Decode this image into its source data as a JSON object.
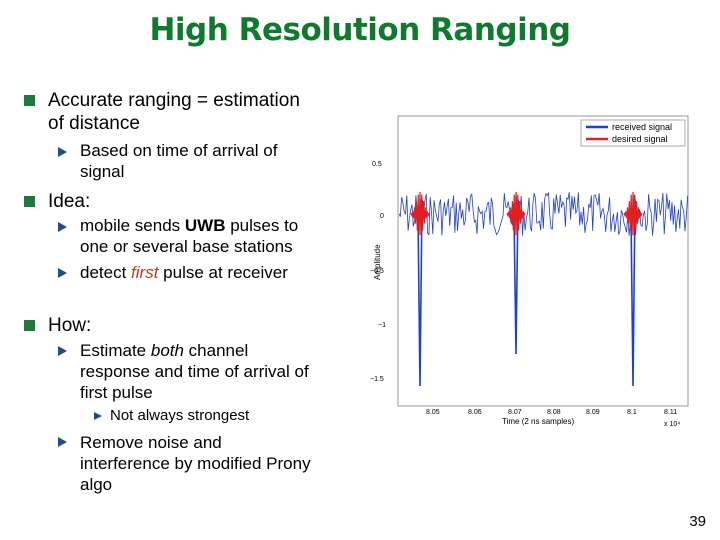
{
  "slide": {
    "title": "High Resolution Ranging",
    "page_number": "39"
  },
  "bullets": {
    "b1": {
      "line1": "Accurate ranging = estimation",
      "line2": "of distance",
      "sub1": {
        "line1": "Based on time of arrival of",
        "line2": "signal"
      }
    },
    "b2": {
      "text": "Idea:",
      "sub1": {
        "part1": "mobile sends ",
        "bold": "UWB",
        "part2": " pulses to",
        "line2": "one or several base stations"
      },
      "sub2": {
        "part1": "detect ",
        "emph": "first",
        "part2": " pulse at receiver"
      }
    },
    "b3": {
      "text": "How:",
      "sub1": {
        "part1": "Estimate ",
        "emph": "both",
        "part2": " channel",
        "line2": "response and time of arrival of",
        "line3": "first pulse",
        "subsub": "Not always strongest"
      },
      "sub2": {
        "line1": "Remove noise and",
        "line2": "interference by modified Prony",
        "line3": "algo"
      }
    }
  },
  "figure": {
    "legend": {
      "received": "received signal",
      "desired": "desired signal"
    },
    "ylabel": "Amplitude",
    "xlabel": "Time (2 ns samples)",
    "x_ticks": [
      "8.05",
      "8.06",
      "8.07",
      "8.08",
      "8.09",
      "8.1",
      "8.11"
    ],
    "y_ticks": [
      "0.5",
      "0",
      "−0.5",
      "−1",
      "−1.5"
    ],
    "x_multiplier": "x 10⁴",
    "colors": {
      "received": "#1f3fd0",
      "desired": "#e02020"
    }
  }
}
